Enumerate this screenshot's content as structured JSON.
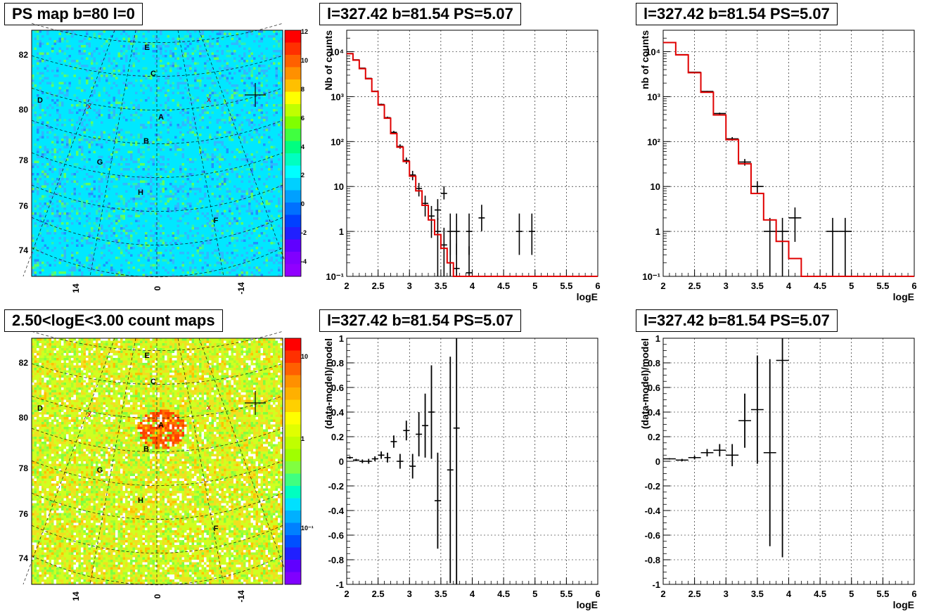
{
  "maps": [
    {
      "title": "PS map b=80 l=0",
      "palette": "cyan",
      "colorbar_ticks": [
        "12",
        "10",
        "8",
        "6",
        "4",
        "2",
        "0",
        "-2",
        "-4"
      ],
      "y_ticks": [
        "82",
        "80",
        "78",
        "76",
        "74"
      ],
      "x_ticks": [
        "14",
        "0",
        "-14"
      ],
      "sources": [
        "E",
        "C",
        "D",
        "A",
        "B",
        "G",
        "H",
        "F"
      ],
      "markers": [
        "x",
        "x",
        "+"
      ]
    },
    {
      "title": "2.50<logE<3.00 count maps",
      "palette": "heat",
      "colorbar_ticks": [
        "10",
        "1",
        "10⁻¹"
      ],
      "y_ticks": [
        "82",
        "80",
        "78",
        "76",
        "74"
      ],
      "x_ticks": [
        "14",
        "0",
        "-14"
      ],
      "sources": [
        "E",
        "C",
        "D",
        "A",
        "B",
        "G",
        "H",
        "F"
      ],
      "markers": [
        "x",
        "x",
        "+"
      ]
    }
  ],
  "chart_data": [
    {
      "type": "line",
      "title": "l=327.42 b=81.54 PS=5.07",
      "xlabel": "logE",
      "ylabel": "Nb of counts",
      "yscale": "log",
      "xlim": [
        2,
        6
      ],
      "ylim": [
        0.1,
        30000
      ],
      "x_ticks": [
        "2",
        "2.5",
        "3",
        "3.5",
        "4",
        "4.5",
        "5",
        "5.5",
        "6"
      ],
      "y_ticks": [
        "10⁻¹",
        "1",
        "10",
        "10²",
        "10³",
        "10⁴"
      ],
      "grid": true,
      "model_color": "#e00000",
      "model": {
        "edges": [
          2.0,
          2.1,
          2.2,
          2.3,
          2.4,
          2.5,
          2.6,
          2.7,
          2.8,
          2.9,
          3.0,
          3.1,
          3.2,
          3.3,
          3.4,
          3.5,
          3.6,
          3.7,
          3.8,
          3.9,
          4.0,
          4.1,
          4.2,
          6.0
        ],
        "values": [
          9000,
          6500,
          4200,
          2500,
          1300,
          650,
          330,
          150,
          75,
          36,
          17,
          8,
          3.8,
          1.8,
          0.85,
          0.42,
          0.2,
          0.1,
          0.1,
          0.1,
          0.1,
          0.1,
          0.1
        ]
      },
      "data": {
        "x": [
          2.05,
          2.15,
          2.25,
          2.35,
          2.45,
          2.55,
          2.65,
          2.75,
          2.85,
          2.95,
          3.05,
          3.15,
          3.25,
          3.35,
          3.45,
          3.55,
          3.65,
          3.75,
          3.95,
          4.15,
          4.75,
          4.95
        ],
        "y": [
          9100,
          6600,
          4300,
          2550,
          1320,
          670,
          340,
          160,
          78,
          38,
          18,
          9,
          4.2,
          2.2,
          1,
          0.5,
          0.2,
          0.15,
          0.12,
          0.1,
          0.1,
          0.1
        ],
        "xerr": 0.05,
        "note_points": [
          [
            3.55,
            7
          ],
          [
            3.45,
            3
          ],
          [
            3.65,
            1
          ],
          [
            3.75,
            1
          ],
          [
            3.95,
            1
          ],
          [
            4.15,
            2
          ],
          [
            4.75,
            1
          ],
          [
            4.95,
            1
          ]
        ]
      }
    },
    {
      "type": "line",
      "title": "l=327.42 b=81.54 PS=5.07",
      "xlabel": "logE",
      "ylabel": "nb of counts",
      "yscale": "log",
      "xlim": [
        2,
        6
      ],
      "ylim": [
        0.1,
        30000
      ],
      "x_ticks": [
        "2",
        "2.5",
        "3",
        "3.5",
        "4",
        "4.5",
        "5",
        "5.5",
        "6"
      ],
      "y_ticks": [
        "10⁻¹",
        "1",
        "10",
        "10²",
        "10³",
        "10⁴"
      ],
      "grid": true,
      "model_color": "#e00000",
      "model": {
        "edges": [
          2.0,
          2.2,
          2.4,
          2.6,
          2.8,
          3.0,
          3.2,
          3.4,
          3.6,
          3.8,
          4.0,
          4.2,
          6.0
        ],
        "values": [
          16000,
          8500,
          3400,
          1250,
          390,
          110,
          32,
          7,
          1.8,
          0.6,
          0.25,
          0.1
        ]
      },
      "data": {
        "x": [
          2.1,
          2.3,
          2.5,
          2.7,
          2.9,
          3.1,
          3.3,
          3.5,
          3.7,
          3.9,
          4.1,
          4.7,
          4.9
        ],
        "y": [
          16000,
          8600,
          3500,
          1300,
          420,
          115,
          35,
          10,
          1,
          1,
          2,
          1,
          1
        ],
        "xerr": 0.1
      }
    },
    {
      "type": "scatter",
      "title": "l=327.42 b=81.54 PS=5.07",
      "xlabel": "logE",
      "ylabel": "(data-model)/model",
      "xlim": [
        2,
        6
      ],
      "ylim": [
        -1,
        1
      ],
      "x_ticks": [
        "2",
        "2.5",
        "3",
        "3.5",
        "4",
        "4.5",
        "5",
        "5.5",
        "6"
      ],
      "y_ticks": [
        "1",
        "0.8",
        "0.6",
        "0.4",
        "0.2",
        "0",
        "-0.2",
        "-0.4",
        "-0.6",
        "-0.8",
        "-1"
      ],
      "grid": true,
      "points": {
        "x": [
          2.05,
          2.15,
          2.25,
          2.35,
          2.45,
          2.55,
          2.65,
          2.75,
          2.85,
          2.95,
          3.05,
          3.15,
          3.25,
          3.35,
          3.45,
          3.65,
          3.75
        ],
        "y": [
          0.03,
          0.01,
          0.0,
          0.0,
          0.02,
          0.05,
          0.03,
          0.16,
          0.0,
          0.25,
          -0.04,
          0.22,
          0.29,
          0.4,
          -0.32,
          -0.07,
          0.27
        ],
        "err": [
          0.01,
          0.01,
          0.015,
          0.02,
          0.02,
          0.03,
          0.04,
          0.05,
          0.06,
          0.08,
          0.1,
          0.18,
          0.26,
          0.38,
          0.39,
          0.92,
          1.3
        ],
        "xerr": 0.05
      }
    },
    {
      "type": "scatter",
      "title": "l=327.42 b=81.54 PS=5.07",
      "xlabel": "logE",
      "ylabel": "(data-model)/model",
      "xlim": [
        2,
        6
      ],
      "ylim": [
        -1,
        1
      ],
      "x_ticks": [
        "2",
        "2.5",
        "3",
        "3.5",
        "4",
        "4.5",
        "5",
        "5.5",
        "6"
      ],
      "y_ticks": [
        "1",
        "0.8",
        "0.6",
        "0.4",
        "0.2",
        "0",
        "-0.2",
        "-0.4",
        "-0.6",
        "-0.8",
        "-1"
      ],
      "grid": true,
      "points": {
        "x": [
          2.1,
          2.3,
          2.5,
          2.7,
          2.9,
          3.1,
          3.3,
          3.5,
          3.7,
          3.9
        ],
        "y": [
          0.02,
          0.01,
          0.03,
          0.07,
          0.09,
          0.05,
          0.33,
          0.42,
          0.07,
          0.82
        ],
        "err": [
          0.005,
          0.01,
          0.015,
          0.03,
          0.05,
          0.09,
          0.22,
          0.44,
          0.76,
          1.6
        ],
        "xerr": 0.1
      }
    }
  ]
}
